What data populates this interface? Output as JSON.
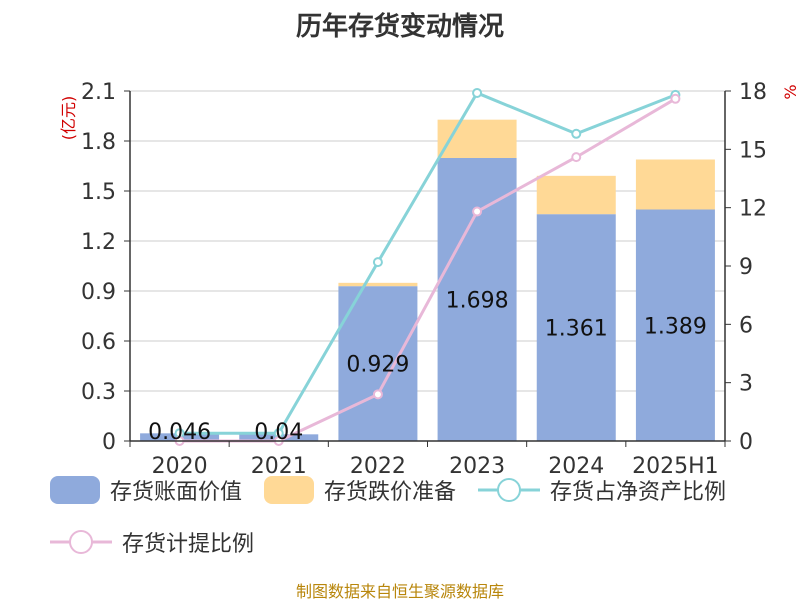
{
  "page": {
    "title": "历年存货变动情况",
    "source": "制图数据来自恒生聚源数据库"
  },
  "chart_data": {
    "type": "bar",
    "title": "历年存货变动情况",
    "categories": [
      "2020",
      "2021",
      "2022",
      "2023",
      "2024",
      "2025H1"
    ],
    "y_left": {
      "label": "(亿元)",
      "ylim": [
        0,
        2.1
      ],
      "ticks": [
        "0",
        "0.3",
        "0.6",
        "0.9",
        "1.2",
        "1.5",
        "1.8",
        "2.1"
      ]
    },
    "y_right": {
      "label": "%",
      "ylim": [
        0,
        18
      ],
      "ticks": [
        "0",
        "3",
        "6",
        "9",
        "12",
        "15",
        "18"
      ]
    },
    "grid": true,
    "legend_position": "bottom",
    "bar_series": [
      {
        "name": "存货账面价值",
        "color": "#8faadc",
        "values": [
          0.046,
          0.04,
          0.929,
          1.698,
          1.361,
          1.389
        ],
        "labels": [
          "0.046",
          "0.04",
          "0.929",
          "1.698",
          "1.361",
          "1.389"
        ]
      },
      {
        "name": "存货跌价准备",
        "color": "#ffd996",
        "values": [
          0.0,
          0.0,
          0.02,
          0.23,
          0.23,
          0.3
        ]
      }
    ],
    "line_series": [
      {
        "name": "存货占净资产比例",
        "color": "#87d3d8",
        "axis": "right",
        "values": [
          0.4,
          0.4,
          9.2,
          17.9,
          15.8,
          17.8
        ]
      },
      {
        "name": "存货计提比例",
        "color": "#e8b8d8",
        "axis": "right",
        "values": [
          0.0,
          0.0,
          2.4,
          11.8,
          14.6,
          17.6
        ]
      }
    ]
  }
}
